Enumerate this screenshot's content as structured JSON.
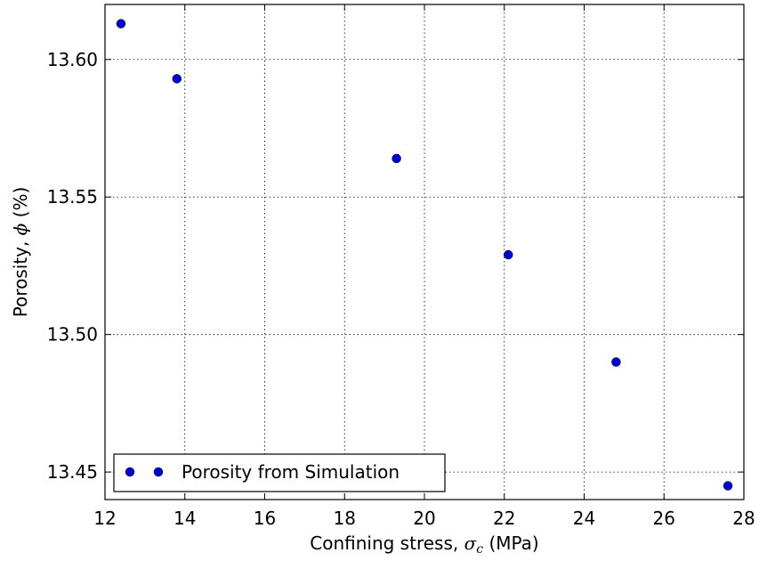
{
  "chart_data": {
    "type": "scatter",
    "xlabel": {
      "prefix": "Confining stress, ",
      "symbol": "σ",
      "subscript": "c",
      "suffix": " (MPa)"
    },
    "ylabel": {
      "prefix": "Porosity, ",
      "symbol": "ϕ",
      "suffix": " (%)"
    },
    "xlim": [
      12,
      28
    ],
    "ylim": [
      13.44,
      13.62
    ],
    "x_ticks": [
      12,
      14,
      16,
      18,
      20,
      22,
      24,
      26,
      28
    ],
    "x_tick_labels": [
      "12",
      "14",
      "16",
      "18",
      "20",
      "22",
      "24",
      "26",
      "28"
    ],
    "y_ticks": [
      13.45,
      13.5,
      13.55,
      13.6
    ],
    "y_tick_labels": [
      "13.45",
      "13.50",
      "13.55",
      "13.60"
    ],
    "grid": true,
    "legend_position": "lower-left",
    "series": [
      {
        "name": "Porosity from Simulation",
        "color": "#0000cc",
        "marker": "circle",
        "x": [
          12.4,
          13.8,
          19.3,
          22.1,
          24.8,
          27.6
        ],
        "y": [
          13.613,
          13.593,
          13.564,
          13.529,
          13.49,
          13.445
        ]
      }
    ]
  }
}
